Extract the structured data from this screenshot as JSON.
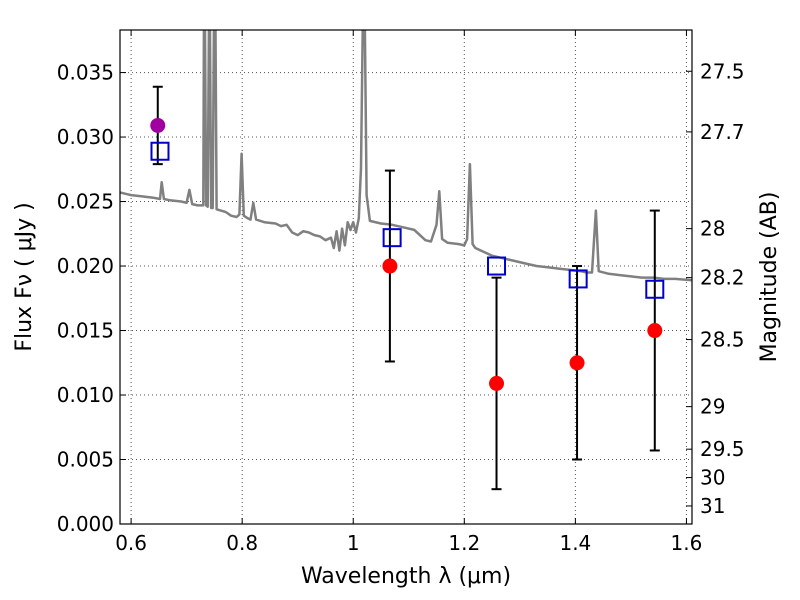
{
  "chart_data": {
    "type": "scatter",
    "title": "",
    "xlabel": "Wavelength  λ (μm)",
    "ylabel": "Flux  Fν  ( μJy )",
    "ylabel_right": "Magnitude (AB)",
    "xlim": [
      0.58,
      1.61
    ],
    "ylim": [
      0.0,
      0.0383
    ],
    "grid": true,
    "x_ticks": [
      {
        "value": 0.6,
        "label": "0.6"
      },
      {
        "value": 0.8,
        "label": "0.8"
      },
      {
        "value": 1.0,
        "label": "1"
      },
      {
        "value": 1.2,
        "label": "1.2"
      },
      {
        "value": 1.4,
        "label": "1.4"
      },
      {
        "value": 1.6,
        "label": "1.6"
      }
    ],
    "y_ticks": [
      {
        "value": 0.0,
        "label": "0.000"
      },
      {
        "value": 0.005,
        "label": "0.005"
      },
      {
        "value": 0.01,
        "label": "0.010"
      },
      {
        "value": 0.015,
        "label": "0.015"
      },
      {
        "value": 0.02,
        "label": "0.020"
      },
      {
        "value": 0.025,
        "label": "0.025"
      },
      {
        "value": 0.03,
        "label": "0.030"
      },
      {
        "value": 0.035,
        "label": "0.035"
      }
    ],
    "right_ticks": [
      {
        "flux": 0.0351,
        "label": "27.5"
      },
      {
        "flux": 0.0304,
        "label": "27.7"
      },
      {
        "flux": 0.0229,
        "label": "28"
      },
      {
        "flux": 0.0191,
        "label": "28.2"
      },
      {
        "flux": 0.0143,
        "label": "28.5"
      },
      {
        "flux": 0.0091,
        "label": "29"
      },
      {
        "flux": 0.0058,
        "label": "29.5"
      },
      {
        "flux": 0.0036,
        "label": "30"
      },
      {
        "flux": 0.0014,
        "label": "31"
      }
    ],
    "colors": {
      "model": "#808080",
      "observed": "#ff0000",
      "observed_optical": "#a000a0",
      "model_photometry": "#0000cc",
      "errorbar": "#000000"
    },
    "series": [
      {
        "kind": "line",
        "color": "#808080",
        "points": [
          [
            0.58,
            0.0257
          ],
          [
            0.6,
            0.0255
          ],
          [
            0.62,
            0.0254
          ],
          [
            0.64,
            0.0253
          ],
          [
            0.652,
            0.0252
          ],
          [
            0.655,
            0.0265
          ],
          [
            0.659,
            0.0252
          ],
          [
            0.67,
            0.0251
          ],
          [
            0.69,
            0.025
          ],
          [
            0.7,
            0.0249
          ],
          [
            0.705,
            0.0259
          ],
          [
            0.71,
            0.0248
          ],
          [
            0.72,
            0.0247
          ],
          [
            0.73,
            0.0247
          ],
          [
            0.731,
            0.0383
          ],
          [
            0.733,
            0.0383
          ],
          [
            0.735,
            0.0247
          ],
          [
            0.738,
            0.0246
          ],
          [
            0.74,
            0.0383
          ],
          [
            0.742,
            0.0383
          ],
          [
            0.744,
            0.0245
          ],
          [
            0.747,
            0.0245
          ],
          [
            0.749,
            0.0383
          ],
          [
            0.752,
            0.0383
          ],
          [
            0.754,
            0.0244
          ],
          [
            0.77,
            0.0242
          ],
          [
            0.78,
            0.0239
          ],
          [
            0.79,
            0.0238
          ],
          [
            0.795,
            0.024
          ],
          [
            0.799,
            0.0287
          ],
          [
            0.803,
            0.0239
          ],
          [
            0.81,
            0.0237
          ],
          [
            0.815,
            0.0236
          ],
          [
            0.82,
            0.0249
          ],
          [
            0.825,
            0.0236
          ],
          [
            0.84,
            0.0234
          ],
          [
            0.86,
            0.0233
          ],
          [
            0.87,
            0.0231
          ],
          [
            0.88,
            0.0232
          ],
          [
            0.89,
            0.0226
          ],
          [
            0.9,
            0.0224
          ],
          [
            0.91,
            0.0227
          ],
          [
            0.92,
            0.0226
          ],
          [
            0.93,
            0.0224
          ],
          [
            0.94,
            0.0223
          ],
          [
            0.95,
            0.022
          ],
          [
            0.96,
            0.0222
          ],
          [
            0.965,
            0.0214
          ],
          [
            0.97,
            0.0227
          ],
          [
            0.975,
            0.0212
          ],
          [
            0.98,
            0.0229
          ],
          [
            0.985,
            0.0216
          ],
          [
            0.99,
            0.0234
          ],
          [
            0.995,
            0.0228
          ],
          [
            1.0,
            0.0234
          ],
          [
            1.005,
            0.0226
          ],
          [
            1.01,
            0.0237
          ],
          [
            1.014,
            0.0276
          ],
          [
            1.017,
            0.0383
          ],
          [
            1.021,
            0.0383
          ],
          [
            1.024,
            0.0255
          ],
          [
            1.03,
            0.0235
          ],
          [
            1.05,
            0.0233
          ],
          [
            1.07,
            0.0232
          ],
          [
            1.09,
            0.023
          ],
          [
            1.11,
            0.0228
          ],
          [
            1.13,
            0.022
          ],
          [
            1.14,
            0.0219
          ],
          [
            1.15,
            0.0232
          ],
          [
            1.155,
            0.0258
          ],
          [
            1.16,
            0.0221
          ],
          [
            1.17,
            0.0218
          ],
          [
            1.19,
            0.0217
          ],
          [
            1.2,
            0.0216
          ],
          [
            1.205,
            0.0221
          ],
          [
            1.21,
            0.0279
          ],
          [
            1.215,
            0.0217
          ],
          [
            1.22,
            0.0214
          ],
          [
            1.23,
            0.0212
          ],
          [
            1.24,
            0.021
          ],
          [
            1.25,
            0.0208
          ],
          [
            1.27,
            0.0206
          ],
          [
            1.29,
            0.0204
          ],
          [
            1.31,
            0.0202
          ],
          [
            1.33,
            0.02
          ],
          [
            1.35,
            0.0199
          ],
          [
            1.37,
            0.0198
          ],
          [
            1.39,
            0.0197
          ],
          [
            1.41,
            0.0196
          ],
          [
            1.42,
            0.0195
          ],
          [
            1.43,
            0.0195
          ],
          [
            1.437,
            0.0243
          ],
          [
            1.442,
            0.0196
          ],
          [
            1.46,
            0.0194
          ],
          [
            1.48,
            0.0193
          ],
          [
            1.5,
            0.0192
          ],
          [
            1.52,
            0.0191
          ],
          [
            1.54,
            0.0191
          ],
          [
            1.56,
            0.019
          ],
          [
            1.58,
            0.019
          ],
          [
            1.61,
            0.0189
          ]
        ]
      },
      {
        "kind": "points",
        "marker": "circle",
        "points": [
          {
            "x": 0.648,
            "y": 0.0309,
            "err_low": 0.0279,
            "err_high": 0.0339,
            "color": "#a000a0"
          },
          {
            "x": 1.066,
            "y": 0.02,
            "err_low": 0.0126,
            "err_high": 0.0274,
            "color": "#ff0000"
          },
          {
            "x": 1.258,
            "y": 0.0109,
            "err_low": 0.0027,
            "err_high": 0.0191,
            "color": "#ff0000"
          },
          {
            "x": 1.403,
            "y": 0.0125,
            "err_low": 0.005,
            "err_high": 0.02,
            "color": "#ff0000"
          },
          {
            "x": 1.543,
            "y": 0.015,
            "err_low": 0.0057,
            "err_high": 0.0243,
            "color": "#ff0000"
          }
        ]
      },
      {
        "kind": "points",
        "marker": "square",
        "color": "#0000cc",
        "points": [
          {
            "x": 0.652,
            "y": 0.0289
          },
          {
            "x": 1.07,
            "y": 0.0222
          },
          {
            "x": 1.258,
            "y": 0.02
          },
          {
            "x": 1.405,
            "y": 0.019
          },
          {
            "x": 1.543,
            "y": 0.0182
          }
        ]
      }
    ]
  }
}
